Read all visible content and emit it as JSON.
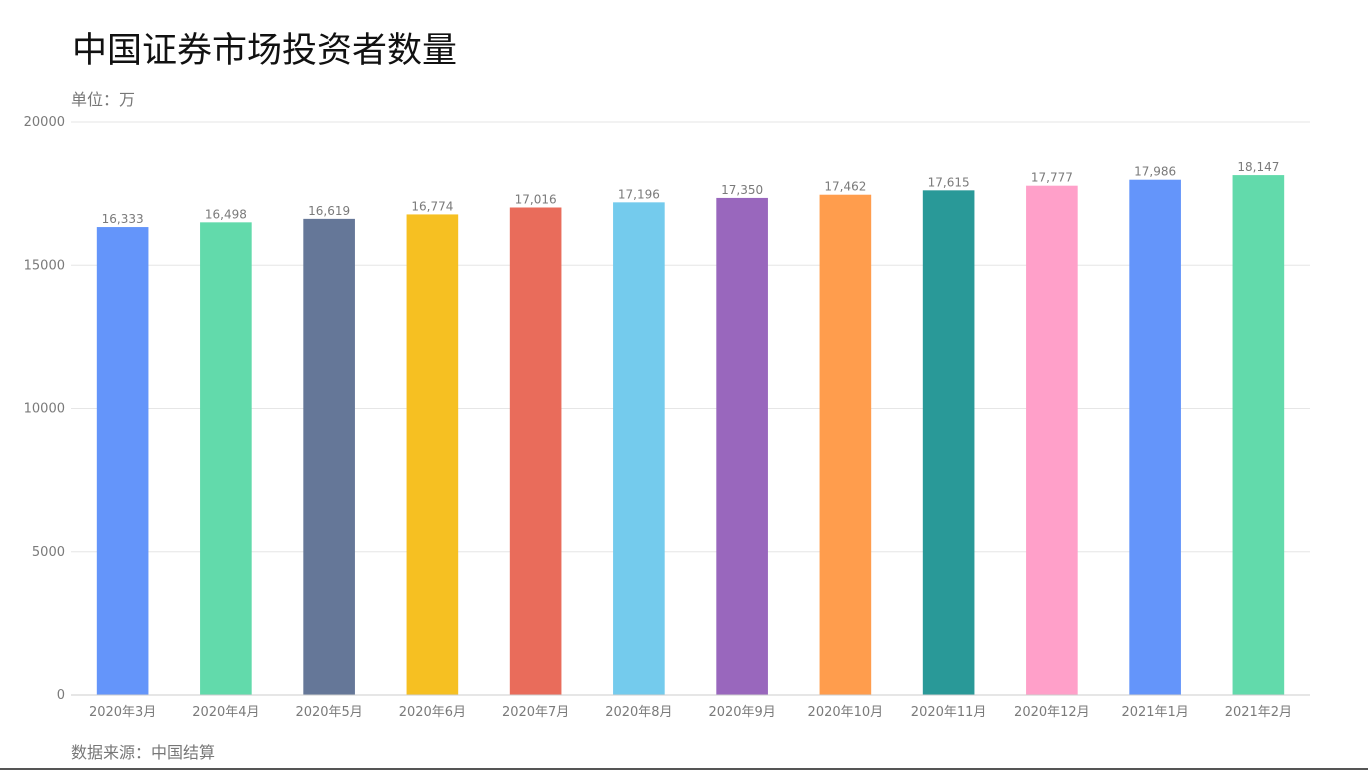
{
  "header": {
    "title": "中国证券市场投资者数量",
    "unit": "单位：万"
  },
  "footer": {
    "source": "数据来源：中国结算"
  },
  "chart_data": {
    "type": "bar",
    "title": "中国证券市场投资者数量",
    "xlabel": "",
    "ylabel": "",
    "ylim": [
      0,
      20000
    ],
    "yticks": [
      0,
      5000,
      10000,
      15000,
      20000
    ],
    "grid": true,
    "legend": "none",
    "categories": [
      "2020年3月",
      "2020年4月",
      "2020年5月",
      "2020年6月",
      "2020年7月",
      "2020年8月",
      "2020年9月",
      "2020年10月",
      "2020年11月",
      "2020年12月",
      "2021年1月",
      "2021年2月"
    ],
    "values": [
      16333,
      16498,
      16619,
      16774,
      17016,
      17196,
      17350,
      17462,
      17615,
      17777,
      17986,
      18147
    ],
    "data_labels": [
      "16,333",
      "16,498",
      "16,619",
      "16,774",
      "17,016",
      "17,196",
      "17,350",
      "17,462",
      "17,615",
      "17,777",
      "17,986",
      "18,147"
    ],
    "colors": [
      "#6495fa",
      "#62daab",
      "#657798",
      "#f6c022",
      "#e96c5b",
      "#74cbed",
      "#9967bd",
      "#ff9d4d",
      "#299998",
      "#ffa0c9",
      "#6495fa",
      "#62daab"
    ]
  }
}
